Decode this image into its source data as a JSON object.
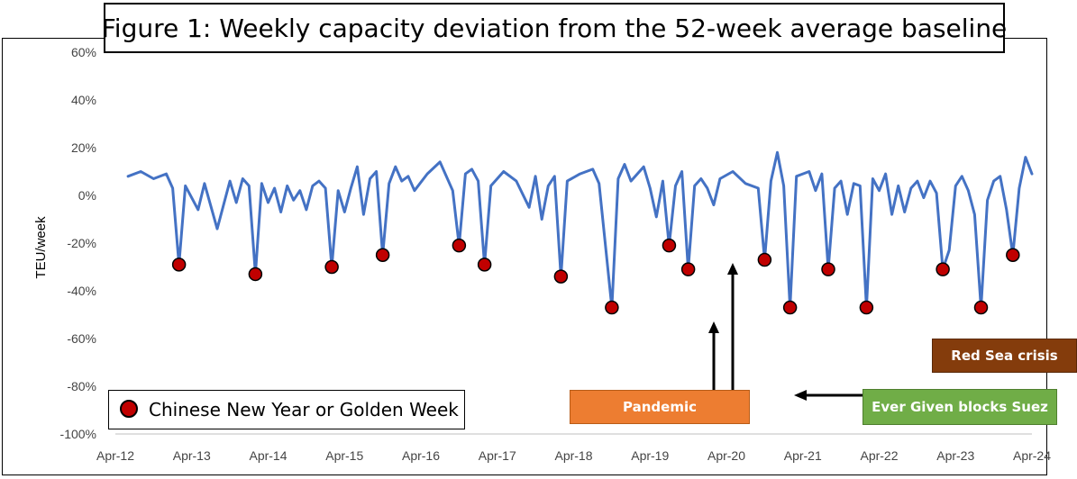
{
  "title": "Figure 1: Weekly capacity deviation from the 52-week average baseline",
  "legend": {
    "label": "Chinese New Year or Golden Week",
    "marker_color": "#c00000"
  },
  "annotations": {
    "pandemic": "Pandemic",
    "ever_given": "Ever Given blocks Suez",
    "red_sea": "Red Sea crisis"
  },
  "colors": {
    "line": "#4472c4",
    "marker": "#c00000",
    "pandemic": "#ed7d31",
    "ever_given": "#70ad47",
    "red_sea": "#843c0c"
  },
  "chart_data": {
    "type": "line",
    "title": "Figure 1: Weekly capacity deviation from the 52-week average baseline",
    "xlabel": "",
    "ylabel": "TEU/week",
    "ylim": [
      -100,
      60
    ],
    "xlim": [
      "2012-04",
      "2024-04"
    ],
    "x_ticks": [
      "Apr-12",
      "Apr-13",
      "Apr-14",
      "Apr-15",
      "Apr-16",
      "Apr-17",
      "Apr-18",
      "Apr-19",
      "Apr-20",
      "Apr-21",
      "Apr-22",
      "Apr-23",
      "Apr-24"
    ],
    "y_ticks": [
      "-100%",
      "-80%",
      "-60%",
      "-40%",
      "-20%",
      "0%",
      "20%",
      "40%",
      "60%"
    ],
    "grid": false,
    "series": [
      {
        "type": "line",
        "unit": "%",
        "points": [
          [
            "2012-06",
            8
          ],
          [
            "2012-08",
            10
          ],
          [
            "2012-10",
            7
          ],
          [
            "2012-12",
            9
          ],
          [
            "2013-01",
            3
          ],
          [
            "2013-02",
            -29
          ],
          [
            "2013-03",
            4
          ],
          [
            "2013-05",
            -6
          ],
          [
            "2013-06",
            5
          ],
          [
            "2013-08",
            -14
          ],
          [
            "2013-10",
            6
          ],
          [
            "2013-11",
            -3
          ],
          [
            "2013-12",
            7
          ],
          [
            "2014-01",
            4
          ],
          [
            "2014-02",
            -33
          ],
          [
            "2014-03",
            5
          ],
          [
            "2014-04",
            -3
          ],
          [
            "2014-05",
            3
          ],
          [
            "2014-06",
            -7
          ],
          [
            "2014-07",
            4
          ],
          [
            "2014-08",
            -2
          ],
          [
            "2014-09",
            2
          ],
          [
            "2014-10",
            -6
          ],
          [
            "2014-11",
            4
          ],
          [
            "2014-12",
            6
          ],
          [
            "2015-01",
            3
          ],
          [
            "2015-02",
            -30
          ],
          [
            "2015-03",
            2
          ],
          [
            "2015-04",
            -7
          ],
          [
            "2015-05",
            3
          ],
          [
            "2015-06",
            12
          ],
          [
            "2015-07",
            -8
          ],
          [
            "2015-08",
            7
          ],
          [
            "2015-09",
            10
          ],
          [
            "2015-10",
            -25
          ],
          [
            "2015-11",
            5
          ],
          [
            "2015-12",
            12
          ],
          [
            "2016-01",
            6
          ],
          [
            "2016-02",
            8
          ],
          [
            "2016-03",
            2
          ],
          [
            "2016-05",
            9
          ],
          [
            "2016-07",
            14
          ],
          [
            "2016-09",
            2
          ],
          [
            "2016-10",
            -21
          ],
          [
            "2016-11",
            9
          ],
          [
            "2016-12",
            11
          ],
          [
            "2017-01",
            6
          ],
          [
            "2017-02",
            -29
          ],
          [
            "2017-03",
            4
          ],
          [
            "2017-05",
            10
          ],
          [
            "2017-07",
            6
          ],
          [
            "2017-09",
            -5
          ],
          [
            "2017-10",
            8
          ],
          [
            "2017-11",
            -10
          ],
          [
            "2017-12",
            4
          ],
          [
            "2018-01",
            8
          ],
          [
            "2018-02",
            -34
          ],
          [
            "2018-03",
            6
          ],
          [
            "2018-05",
            9
          ],
          [
            "2018-07",
            11
          ],
          [
            "2018-08",
            5
          ],
          [
            "2018-10",
            -47
          ],
          [
            "2018-11",
            7
          ],
          [
            "2018-12",
            13
          ],
          [
            "2019-01",
            6
          ],
          [
            "2019-03",
            12
          ],
          [
            "2019-04",
            3
          ],
          [
            "2019-05",
            -9
          ],
          [
            "2019-06",
            6
          ],
          [
            "2019-07",
            -21
          ],
          [
            "2019-08",
            4
          ],
          [
            "2019-09",
            10
          ],
          [
            "2019-10",
            -31
          ],
          [
            "2019-11",
            4
          ],
          [
            "2019-12",
            7
          ],
          [
            "2020-01",
            3
          ],
          [
            "2020-02",
            -4
          ],
          [
            "2020-03",
            7
          ],
          [
            "2020-05",
            10
          ],
          [
            "2020-07",
            5
          ],
          [
            "2020-09",
            3
          ],
          [
            "2020-10",
            -27
          ],
          [
            "2020-11",
            6
          ],
          [
            "2020-12",
            18
          ],
          [
            "2021-01",
            4
          ],
          [
            "2021-02",
            -47
          ],
          [
            "2021-03",
            8
          ],
          [
            "2021-05",
            10
          ],
          [
            "2021-06",
            2
          ],
          [
            "2021-07",
            9
          ],
          [
            "2021-08",
            -31
          ],
          [
            "2021-09",
            3
          ],
          [
            "2021-10",
            6
          ],
          [
            "2021-11",
            -8
          ],
          [
            "2021-12",
            5
          ],
          [
            "2022-01",
            4
          ],
          [
            "2022-02",
            -47
          ],
          [
            "2022-03",
            7
          ],
          [
            "2022-04",
            2
          ],
          [
            "2022-05",
            9
          ],
          [
            "2022-06",
            -8
          ],
          [
            "2022-07",
            4
          ],
          [
            "2022-08",
            -7
          ],
          [
            "2022-09",
            3
          ],
          [
            "2022-10",
            6
          ],
          [
            "2022-11",
            -1
          ],
          [
            "2022-12",
            6
          ],
          [
            "2023-01",
            1
          ],
          [
            "2023-02",
            -31
          ],
          [
            "2023-03",
            -23
          ],
          [
            "2023-04",
            4
          ],
          [
            "2023-05",
            8
          ],
          [
            "2023-06",
            2
          ],
          [
            "2023-07",
            -8
          ],
          [
            "2023-08",
            -47
          ],
          [
            "2023-09",
            -2
          ],
          [
            "2023-10",
            6
          ],
          [
            "2023-11",
            8
          ],
          [
            "2023-12",
            -6
          ],
          [
            "2024-01",
            -25
          ],
          [
            "2024-02",
            3
          ],
          [
            "2024-03",
            16
          ],
          [
            "2024-04",
            9
          ]
        ]
      }
    ]
  }
}
